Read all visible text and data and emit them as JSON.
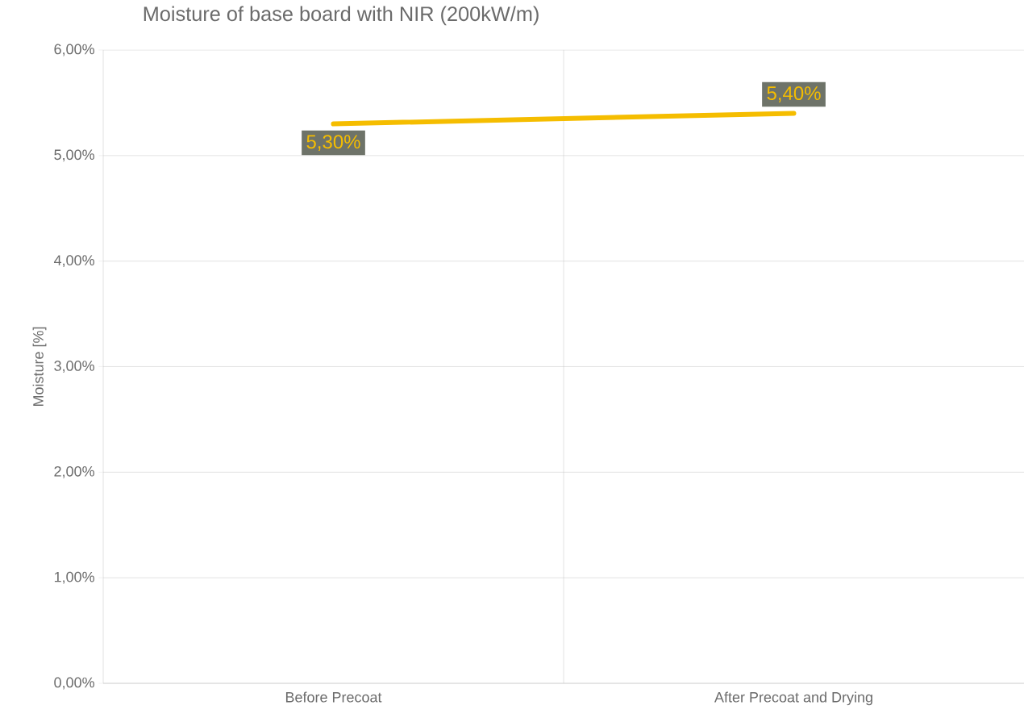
{
  "chart_data": {
    "type": "line",
    "title": "Moisture of base board with NIR (200kW/m)",
    "ylabel": "Moisture [%]",
    "categories": [
      "Before Precoat",
      "After Precoat and Drying"
    ],
    "values": [
      5.3,
      5.4
    ],
    "color": "#f5bd00",
    "value_labels": [
      "5,30%",
      "5,40%"
    ],
    "ylim": [
      0,
      6
    ],
    "yticks": [
      {
        "value": 0,
        "label": "0,00%"
      },
      {
        "value": 1,
        "label": "1,00%"
      },
      {
        "value": 2,
        "label": "2,00%"
      },
      {
        "value": 3,
        "label": "3,00%"
      },
      {
        "value": 4,
        "label": "4,00%"
      },
      {
        "value": 5,
        "label": "5,00%"
      },
      {
        "value": 6,
        "label": "6,00%"
      }
    ],
    "grid": true,
    "marker": "none",
    "line_style": "solid"
  }
}
